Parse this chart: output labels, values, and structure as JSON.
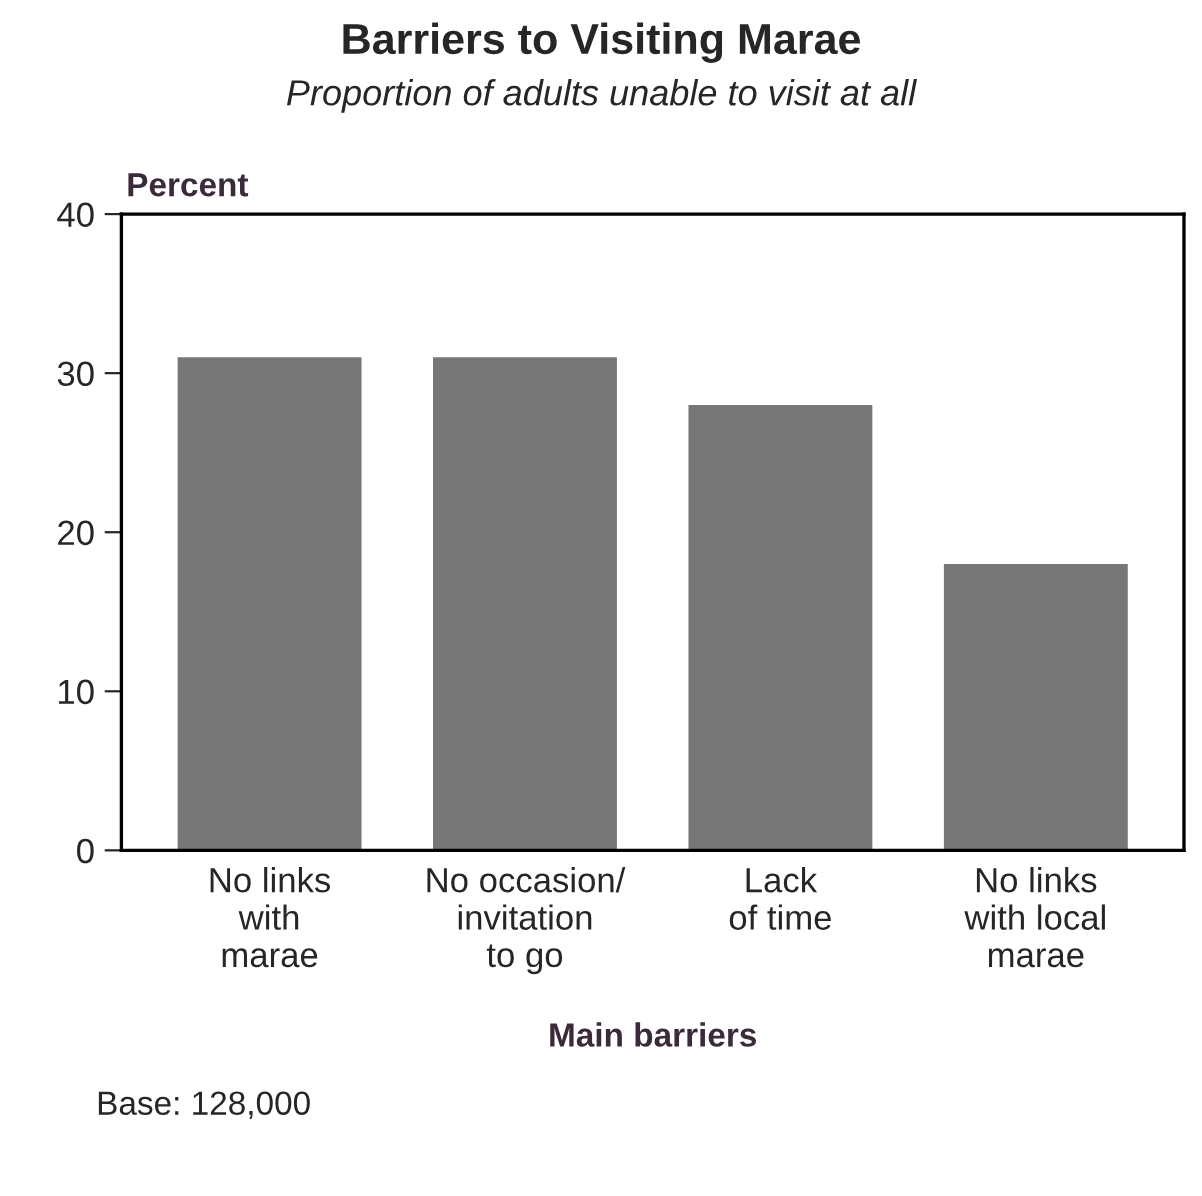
{
  "chart_data": {
    "type": "bar",
    "title": "Barriers to Visiting Marae",
    "subtitle": "Proportion of adults unable to visit at all",
    "ylabel": "Percent",
    "xlabel": "Main barriers",
    "categories": [
      "No links\nwith\nmarae",
      "No occasion/\ninvitation\nto go",
      "Lack\nof time",
      "No links\nwith local\nmarae"
    ],
    "values": [
      31,
      31,
      28,
      18
    ],
    "color": "#777777",
    "ylim": [
      0,
      40
    ],
    "yticks": [
      0,
      10,
      20,
      30,
      40
    ],
    "grid": false,
    "legend": false,
    "annotations": [
      "Base: 128,000"
    ]
  }
}
